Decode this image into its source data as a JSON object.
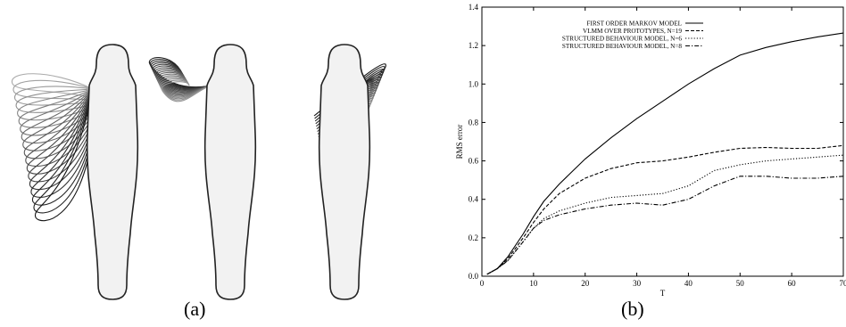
{
  "captions": {
    "a": "(a)",
    "b": "(b)"
  },
  "chart_data": {
    "type": "line",
    "xlabel": "T",
    "ylabel": "RMS error",
    "xlim": [
      0,
      70
    ],
    "ylim": [
      0,
      1.4
    ],
    "xticks": [
      0,
      10,
      20,
      30,
      40,
      50,
      60,
      70
    ],
    "yticks": [
      0.0,
      0.2,
      0.4,
      0.6,
      0.8,
      1.0,
      1.2,
      1.4
    ],
    "grid": false,
    "legend_position": "top-right",
    "series": [
      {
        "name": "FIRST ORDER MARKOV MODEL",
        "dash": "solid",
        "x": [
          1,
          3,
          5,
          8,
          10,
          12,
          15,
          20,
          25,
          30,
          35,
          40,
          45,
          50,
          55,
          60,
          65,
          70
        ],
        "y": [
          0.01,
          0.04,
          0.1,
          0.22,
          0.31,
          0.39,
          0.48,
          0.61,
          0.72,
          0.82,
          0.91,
          1.0,
          1.08,
          1.15,
          1.19,
          1.22,
          1.245,
          1.265
        ]
      },
      {
        "name": "VLMM OVER PROTOTYPES, N=19",
        "dash": "dashed",
        "x": [
          1,
          3,
          5,
          8,
          10,
          12,
          15,
          20,
          25,
          30,
          35,
          40,
          45,
          50,
          55,
          60,
          65,
          70
        ],
        "y": [
          0.01,
          0.04,
          0.09,
          0.2,
          0.28,
          0.35,
          0.43,
          0.51,
          0.56,
          0.59,
          0.6,
          0.62,
          0.645,
          0.665,
          0.67,
          0.665,
          0.665,
          0.68
        ]
      },
      {
        "name": "STRUCTURED BEHAVIOUR MODEL, N=6",
        "dash": "dotted",
        "x": [
          1,
          3,
          5,
          8,
          10,
          12,
          15,
          20,
          25,
          30,
          35,
          40,
          45,
          50,
          55,
          60,
          65,
          70
        ],
        "y": [
          0.01,
          0.04,
          0.08,
          0.18,
          0.25,
          0.3,
          0.34,
          0.38,
          0.41,
          0.42,
          0.43,
          0.47,
          0.55,
          0.58,
          0.6,
          0.61,
          0.62,
          0.63
        ]
      },
      {
        "name": "STRUCTURED BEHAVIOUR MODEL, N=8",
        "dash": "dashdot",
        "x": [
          1,
          3,
          5,
          8,
          10,
          12,
          15,
          20,
          25,
          30,
          35,
          40,
          45,
          50,
          55,
          60,
          65,
          70
        ],
        "y": [
          0.01,
          0.04,
          0.08,
          0.18,
          0.25,
          0.29,
          0.32,
          0.35,
          0.37,
          0.38,
          0.37,
          0.4,
          0.47,
          0.52,
          0.52,
          0.51,
          0.51,
          0.52
        ]
      }
    ]
  }
}
